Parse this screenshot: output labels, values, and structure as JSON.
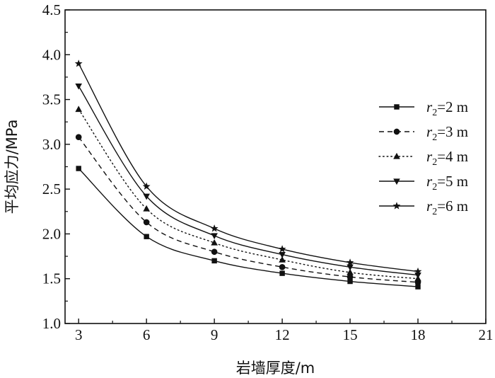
{
  "chart_data": {
    "type": "line",
    "xlabel": "岩墙厚度/m",
    "ylabel": "平均应力/MPa",
    "xlim": [
      2.4,
      21
    ],
    "ylim": [
      1.0,
      4.5
    ],
    "xticks": [
      3,
      6,
      9,
      12,
      15,
      18,
      21
    ],
    "yticks": [
      1.0,
      1.5,
      2.0,
      2.5,
      3.0,
      3.5,
      4.0,
      4.5
    ],
    "x": [
      3,
      6,
      9,
      12,
      15,
      18
    ],
    "grid": false,
    "legend_position": "right",
    "series": [
      {
        "name": "r2=2 m",
        "legend_var": "r",
        "legend_sub": "2",
        "legend_rest": "=2 m",
        "marker": "square",
        "dash": "solid",
        "values": [
          2.73,
          1.97,
          1.7,
          1.56,
          1.47,
          1.41
        ]
      },
      {
        "name": "r2=3 m",
        "legend_var": "r",
        "legend_sub": "2",
        "legend_rest": "=3 m",
        "marker": "circle",
        "dash": "dashed",
        "values": [
          3.08,
          2.13,
          1.8,
          1.63,
          1.52,
          1.46
        ]
      },
      {
        "name": "r2=4 m",
        "legend_var": "r",
        "legend_sub": "2",
        "legend_rest": "=4 m",
        "marker": "triangle-up",
        "dash": "dotted",
        "values": [
          3.39,
          2.28,
          1.9,
          1.71,
          1.57,
          1.5
        ]
      },
      {
        "name": "r2=5 m",
        "legend_var": "r",
        "legend_sub": "2",
        "legend_rest": "=5 m",
        "marker": "triangle-down",
        "dash": "solid",
        "values": [
          3.65,
          2.42,
          1.98,
          1.77,
          1.63,
          1.54
        ]
      },
      {
        "name": "r2=6 m",
        "legend_var": "r",
        "legend_sub": "2",
        "legend_rest": "=6 m",
        "marker": "star",
        "dash": "solid",
        "values": [
          3.9,
          2.53,
          2.06,
          1.83,
          1.68,
          1.58
        ]
      }
    ]
  }
}
